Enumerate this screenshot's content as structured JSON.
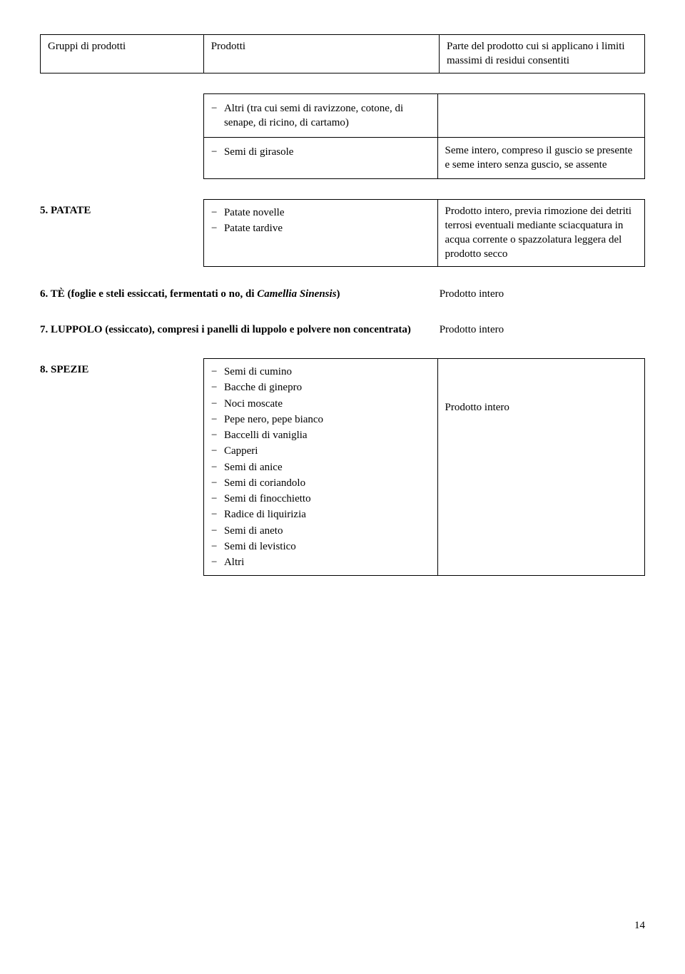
{
  "header": {
    "col1": "Gruppi di prodotti",
    "col2": "Prodotti",
    "col3": "Parte del prodotto cui si applicano i limiti massimi di residui consentiti"
  },
  "row_altri": {
    "item": "Altri (tra cui semi di ravizzone, cotone, di senape, di ricino, di cartamo)"
  },
  "row_girasole": {
    "item": "Semi di girasole",
    "desc": "Seme intero, compreso il guscio se presente e seme intero senza guscio, se assente"
  },
  "sec5": {
    "label": "5. PATATE",
    "items": [
      "Patate novelle",
      "Patate tardive"
    ],
    "desc": "Prodotto intero, previa rimozione dei detriti terrosi eventuali mediante sciacquatura in acqua corrente o spazzolatura leggera del prodotto secco"
  },
  "sec6": {
    "label_pre": "6. TÈ (foglie e steli essiccati, fermentati o no, di ",
    "label_it": "Camellia Sinensis",
    "label_post": ")",
    "rhs": "Prodotto intero"
  },
  "sec7": {
    "label": "7. LUPPOLO (essiccato), compresi i panelli di luppolo e polvere non concentrata)",
    "rhs": "Prodotto intero"
  },
  "sec8": {
    "label": "8. SPEZIE",
    "items": [
      "Semi di cumino",
      "Bacche di ginepro",
      "Noci moscate",
      "Pepe nero, pepe bianco",
      "Baccelli di vaniglia",
      "Capperi",
      "Semi di anice",
      "Semi di coriandolo",
      "Semi di finocchietto",
      "Radice di liquirizia",
      "Semi di aneto",
      "Semi di levistico",
      "Altri"
    ],
    "desc": "Prodotto intero"
  },
  "page_number": "14"
}
